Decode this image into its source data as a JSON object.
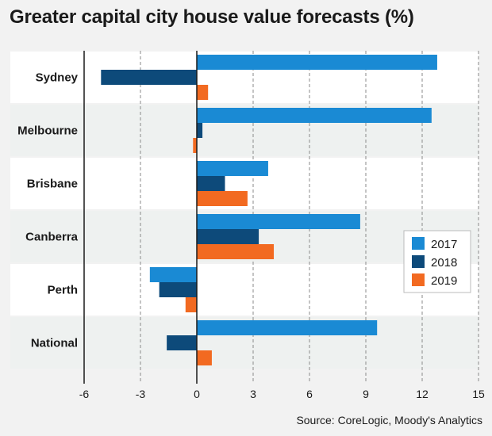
{
  "chart_data": {
    "type": "bar",
    "orientation": "horizontal",
    "title": "Greater capital city house value forecasts (%)",
    "source": "Source: CoreLogic, Moody's Analytics",
    "categories": [
      "Sydney",
      "Melbourne",
      "Brisbane",
      "Canberra",
      "Perth",
      "National"
    ],
    "series": [
      {
        "name": "2017",
        "color": "#1a8ad4",
        "values": [
          12.8,
          12.5,
          3.8,
          8.7,
          -2.5,
          9.6
        ]
      },
      {
        "name": "2018",
        "color": "#0d4a7a",
        "values": [
          -5.1,
          0.3,
          1.5,
          3.3,
          -2.0,
          -1.6
        ]
      },
      {
        "name": "2019",
        "color": "#f26a21",
        "values": [
          0.6,
          -0.2,
          2.7,
          4.1,
          -0.6,
          0.8
        ]
      }
    ],
    "xlim": [
      -6,
      15
    ],
    "xticks": [
      "-6",
      "-3",
      "0",
      "3",
      "6",
      "9",
      "12",
      "15"
    ],
    "xlabel": "",
    "ylabel": "",
    "grid": "vertical dashed",
    "legend_position": "right"
  }
}
